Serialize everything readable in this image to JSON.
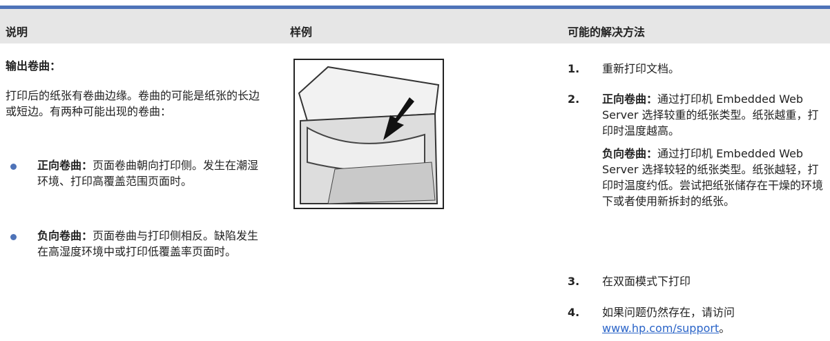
{
  "header": {
    "col1": "说明",
    "col2": "样例",
    "col3": "可能的解决方法"
  },
  "description": {
    "title": "输出卷曲：",
    "intro": "打印后的纸张有卷曲边缘。卷曲的可能是纸张的长边或短边。有两种可能出现的卷曲：",
    "bullets": [
      {
        "term": "正向卷曲：",
        "text": "页面卷曲朝向打印侧。发生在潮湿环境、打印高覆盖范围页面时。"
      },
      {
        "term": "负向卷曲：",
        "text": "页面卷曲与打印侧相反。缺陷发生在高湿度环境中或打印低覆盖率页面时。"
      }
    ]
  },
  "solutions": [
    {
      "number": "1.",
      "text": "重新打印文档。"
    },
    {
      "number": "2.",
      "term": "正向卷曲：",
      "text": "通过打印机 Embedded Web Server 选择较重的纸张类型。纸张越重，打印时温度越高。",
      "extra_term": "负向卷曲：",
      "extra_text": "通过打印机 Embedded Web Server 选择较轻的纸张类型。纸张越轻，打印时温度约低。尝试把纸张储存在干燥的环境下或者使用新拆封的纸张。"
    },
    {
      "number": "3.",
      "text": "在双面模式下打印"
    },
    {
      "number": "4.",
      "text": "如果问题仍然存在，请访问",
      "link": "www.hp.com/support",
      "after": "。"
    }
  ]
}
